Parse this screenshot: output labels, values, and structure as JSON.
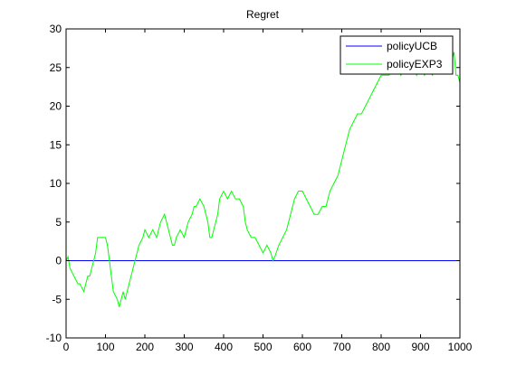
{
  "chart_data": {
    "type": "line",
    "title": "Regret",
    "xlabel": "",
    "ylabel": "",
    "xlim": [
      0,
      1000
    ],
    "ylim": [
      -10,
      30
    ],
    "x_ticks": [
      0,
      100,
      200,
      300,
      400,
      500,
      600,
      700,
      800,
      900,
      1000
    ],
    "y_ticks": [
      -10,
      -5,
      0,
      5,
      10,
      15,
      20,
      25,
      30
    ],
    "grid": false,
    "legend_position": "top-right",
    "series": [
      {
        "name": "policyUCB",
        "color": "#0000ff",
        "points": [
          [
            0,
            0
          ],
          [
            1000,
            0
          ]
        ]
      },
      {
        "name": "policyEXP3",
        "color": "#00ff00",
        "points": [
          [
            0,
            0
          ],
          [
            5,
            0.5
          ],
          [
            10,
            -1
          ],
          [
            15,
            -1.5
          ],
          [
            20,
            -2
          ],
          [
            25,
            -2.5
          ],
          [
            30,
            -3
          ],
          [
            35,
            -3
          ],
          [
            40,
            -3.5
          ],
          [
            45,
            -4
          ],
          [
            50,
            -3
          ],
          [
            55,
            -2
          ],
          [
            60,
            -2
          ],
          [
            65,
            -1
          ],
          [
            70,
            0
          ],
          [
            75,
            1
          ],
          [
            80,
            3
          ],
          [
            90,
            3
          ],
          [
            100,
            3
          ],
          [
            105,
            2
          ],
          [
            110,
            0
          ],
          [
            115,
            -2
          ],
          [
            120,
            -4
          ],
          [
            130,
            -5
          ],
          [
            135,
            -6
          ],
          [
            140,
            -5
          ],
          [
            145,
            -4
          ],
          [
            150,
            -5
          ],
          [
            155,
            -4
          ],
          [
            160,
            -3
          ],
          [
            165,
            -2
          ],
          [
            170,
            -1
          ],
          [
            175,
            0
          ],
          [
            180,
            1
          ],
          [
            185,
            2
          ],
          [
            190,
            2.5
          ],
          [
            195,
            3
          ],
          [
            200,
            4
          ],
          [
            210,
            3
          ],
          [
            220,
            4
          ],
          [
            230,
            3
          ],
          [
            240,
            5
          ],
          [
            250,
            6
          ],
          [
            255,
            5
          ],
          [
            260,
            4
          ],
          [
            265,
            3
          ],
          [
            270,
            2
          ],
          [
            275,
            2
          ],
          [
            280,
            3
          ],
          [
            290,
            4
          ],
          [
            300,
            3
          ],
          [
            310,
            5
          ],
          [
            320,
            6
          ],
          [
            325,
            7
          ],
          [
            330,
            7
          ],
          [
            340,
            8
          ],
          [
            350,
            7
          ],
          [
            355,
            6
          ],
          [
            360,
            5
          ],
          [
            365,
            3
          ],
          [
            370,
            3
          ],
          [
            380,
            5
          ],
          [
            385,
            6
          ],
          [
            390,
            8
          ],
          [
            400,
            9
          ],
          [
            410,
            8
          ],
          [
            420,
            9
          ],
          [
            430,
            8
          ],
          [
            440,
            8
          ],
          [
            450,
            7
          ],
          [
            455,
            5
          ],
          [
            460,
            4
          ],
          [
            470,
            3
          ],
          [
            480,
            3
          ],
          [
            490,
            2
          ],
          [
            495,
            1.5
          ],
          [
            500,
            1
          ],
          [
            510,
            2
          ],
          [
            520,
            1
          ],
          [
            525,
            0
          ],
          [
            530,
            0.5
          ],
          [
            540,
            2
          ],
          [
            550,
            3
          ],
          [
            560,
            4
          ],
          [
            570,
            6
          ],
          [
            580,
            8
          ],
          [
            590,
            9
          ],
          [
            600,
            9
          ],
          [
            610,
            8
          ],
          [
            620,
            7
          ],
          [
            630,
            6
          ],
          [
            640,
            6
          ],
          [
            650,
            7
          ],
          [
            660,
            7
          ],
          [
            670,
            9
          ],
          [
            680,
            10
          ],
          [
            690,
            11
          ],
          [
            700,
            13
          ],
          [
            710,
            15
          ],
          [
            720,
            17
          ],
          [
            730,
            18
          ],
          [
            740,
            19
          ],
          [
            750,
            19
          ],
          [
            760,
            20
          ],
          [
            770,
            21
          ],
          [
            780,
            22
          ],
          [
            790,
            23
          ],
          [
            800,
            24
          ],
          [
            810,
            24
          ],
          [
            820,
            24
          ],
          [
            830,
            25
          ],
          [
            840,
            26
          ],
          [
            850,
            24
          ],
          [
            860,
            25
          ],
          [
            870,
            25
          ],
          [
            880,
            26
          ],
          [
            890,
            24
          ],
          [
            900,
            25
          ],
          [
            910,
            24
          ],
          [
            920,
            25
          ],
          [
            930,
            24
          ],
          [
            940,
            25
          ],
          [
            950,
            26
          ],
          [
            960,
            25
          ],
          [
            970,
            26
          ],
          [
            980,
            26
          ],
          [
            985,
            27
          ],
          [
            990,
            24
          ],
          [
            995,
            24
          ],
          [
            1000,
            23
          ]
        ]
      }
    ]
  }
}
